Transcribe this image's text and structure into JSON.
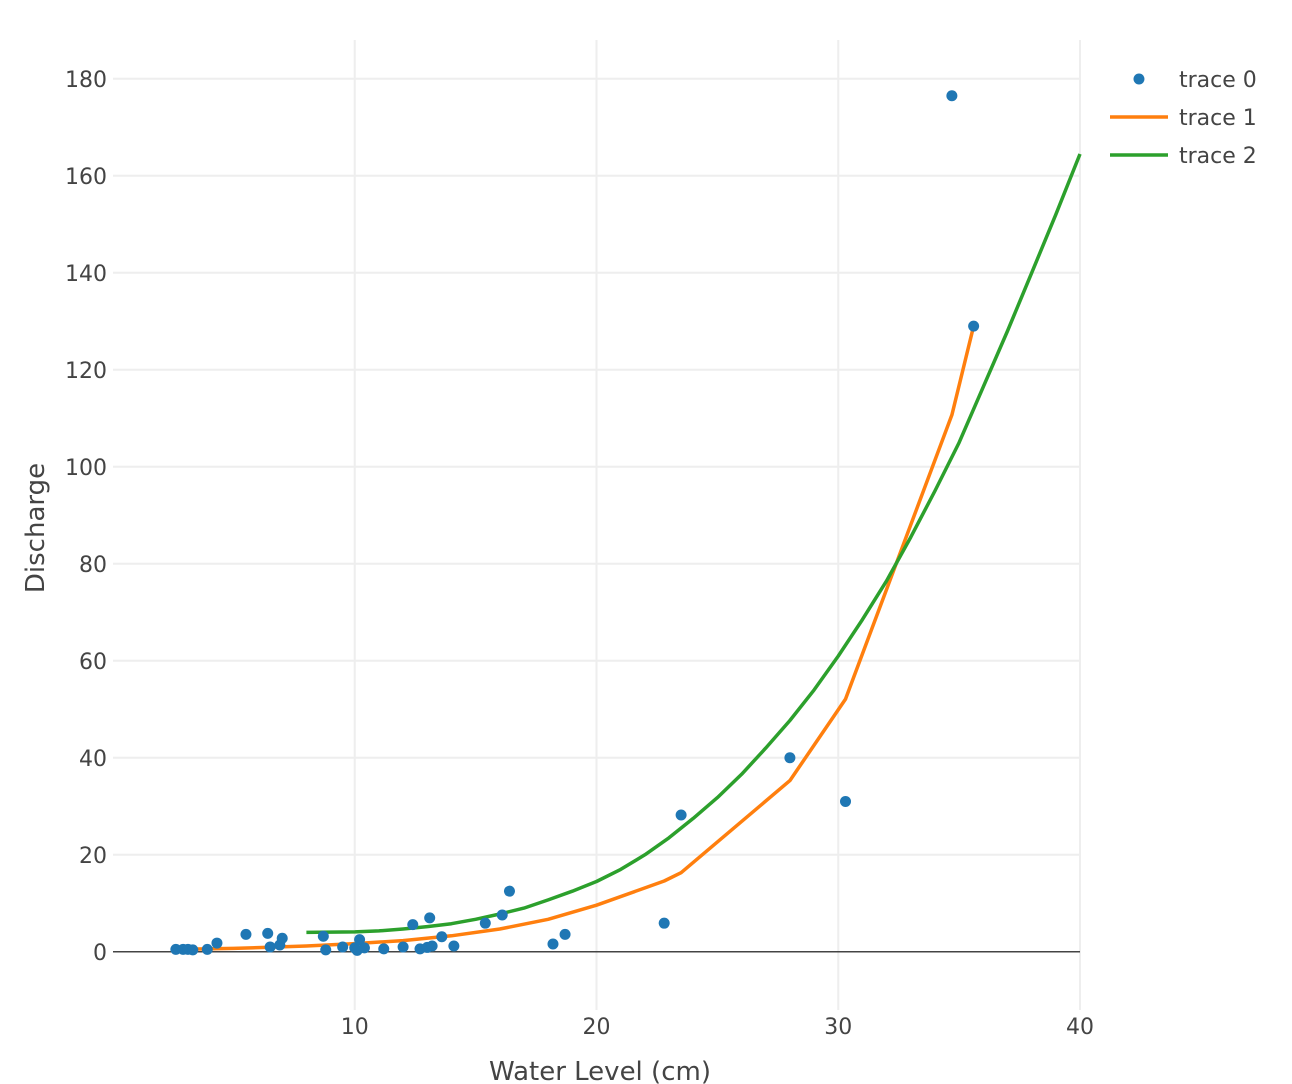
{
  "chart_data": {
    "type": "scatter",
    "xlabel": "Water Level (cm)",
    "ylabel": "Discharge",
    "xlim": [
      0,
      40
    ],
    "ylim": [
      -12,
      188
    ],
    "x_ticks": [
      10,
      20,
      30,
      40
    ],
    "y_ticks": [
      0,
      20,
      40,
      60,
      80,
      100,
      120,
      140,
      160,
      180
    ],
    "grid": true,
    "legend_position": "top-right",
    "series": [
      {
        "name": "trace 0",
        "mode": "markers",
        "color": "#1f77b4",
        "x": [
          2.6,
          2.9,
          3.1,
          3.3,
          3.9,
          4.3,
          5.5,
          6.4,
          6.5,
          6.9,
          7.0,
          8.7,
          8.8,
          9.5,
          10.0,
          10.1,
          10.2,
          10.4,
          11.2,
          12.0,
          12.4,
          12.7,
          13.0,
          13.1,
          13.2,
          13.6,
          14.1,
          15.4,
          16.1,
          16.4,
          18.2,
          18.7,
          22.8,
          23.5,
          28.0,
          30.3,
          34.7,
          35.6
        ],
        "y": [
          0.5,
          0.5,
          0.5,
          0.4,
          0.5,
          1.8,
          3.6,
          3.8,
          1.0,
          1.4,
          2.8,
          3.2,
          0.4,
          1.0,
          0.8,
          0.3,
          2.5,
          0.8,
          0.6,
          1.0,
          5.6,
          0.6,
          0.9,
          7.0,
          1.2,
          3.1,
          1.2,
          5.9,
          7.6,
          12.5,
          1.6,
          3.6,
          5.9,
          28.2,
          40.0,
          31.0,
          176.5,
          129.0
        ]
      },
      {
        "name": "trace 1",
        "mode": "lines",
        "color": "#ff7f0e",
        "x": [
          2.6,
          5.0,
          8.0,
          10.0,
          12.0,
          14.0,
          16.0,
          18.0,
          20.0,
          22.8,
          23.5,
          28.0,
          30.3,
          34.7,
          35.6
        ],
        "y": [
          0.5,
          0.7,
          1.2,
          1.7,
          2.3,
          3.3,
          4.7,
          6.7,
          9.6,
          14.6,
          16.3,
          35.3,
          52.1,
          110.7,
          129.0
        ]
      },
      {
        "name": "trace 2",
        "mode": "lines",
        "color": "#2ca02c",
        "x": [
          8,
          10,
          11,
          12,
          13,
          14,
          15,
          16,
          17,
          18,
          19,
          20,
          21,
          22,
          23,
          24,
          25,
          26,
          27,
          28,
          29,
          30,
          31,
          32,
          33,
          34,
          35,
          36,
          37,
          38,
          39,
          40
        ],
        "y": [
          4.0,
          4.1,
          4.3,
          4.7,
          5.2,
          5.8,
          6.7,
          7.8,
          9.0,
          10.7,
          12.5,
          14.5,
          17.0,
          20.0,
          23.5,
          27.5,
          31.8,
          36.6,
          42.0,
          47.7,
          54.0,
          61.0,
          68.5,
          76.5,
          85.5,
          95.0,
          105.0,
          116.5,
          128.0,
          140.0,
          152.0,
          164.5
        ]
      }
    ]
  }
}
